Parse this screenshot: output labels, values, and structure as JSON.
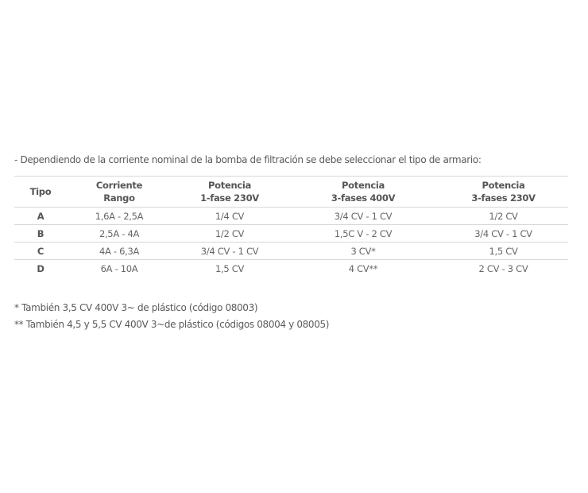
{
  "intro": "- Dependiendo de la corriente nominal de la bomba de filtración se debe seleccionar el tipo de armario:",
  "table": {
    "headers": [
      [
        "Tipo",
        ""
      ],
      [
        "Corriente",
        "Rango"
      ],
      [
        "Potencia",
        "1-fase 230V"
      ],
      [
        "Potencia",
        "3-fases 400V"
      ],
      [
        "Potencia",
        "3-fases 230V"
      ]
    ],
    "rows": [
      [
        "A",
        "1,6A - 2,5A",
        "1/4 CV",
        "3/4 CV - 1 CV",
        "1/2 CV"
      ],
      [
        "B",
        "2,5A - 4A",
        "1/2 CV",
        "1,5C V - 2 CV",
        "3/4 CV - 1 CV"
      ],
      [
        "C",
        "4A - 6,3A",
        "3/4 CV - 1 CV",
        "3 CV*",
        "1,5 CV"
      ],
      [
        "D",
        "6A - 10A",
        "1,5 CV",
        "4 CV**",
        "2 CV - 3 CV"
      ]
    ]
  },
  "footnotes": [
    "* También 3,5 CV 400V 3~ de plástico (código 08003)",
    "** También 4,5 y 5,5 CV 400V 3~de plástico (códigos 08004 y 08005)"
  ]
}
